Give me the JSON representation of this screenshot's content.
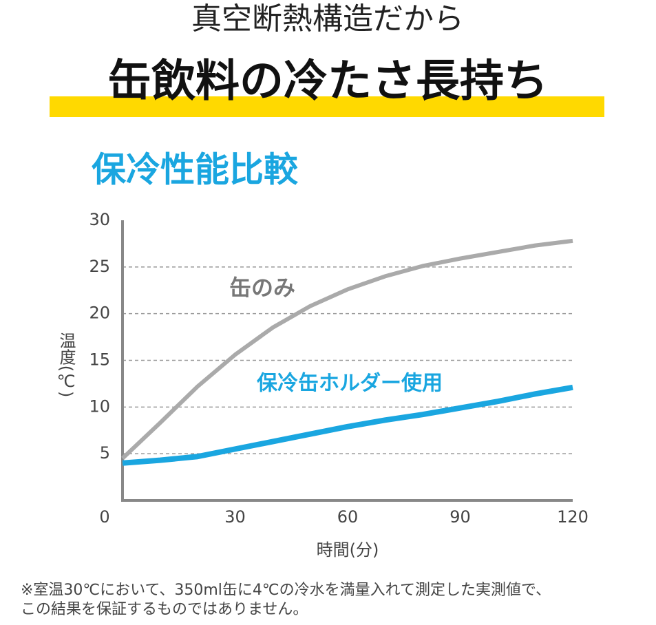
{
  "header": {
    "line1": "真空断熱構造だから",
    "line2": "缶飲料の冷たさ長持ち"
  },
  "chart_data": {
    "type": "line",
    "title": "保冷性能比較",
    "x_label": "時間(分)",
    "y_label": "温度(℃)",
    "x": [
      0,
      10,
      20,
      30,
      40,
      50,
      60,
      70,
      80,
      90,
      100,
      110,
      120
    ],
    "series": [
      {
        "name": "缶のみ",
        "color": "#aaaaaa",
        "values": [
          4.5,
          8.3,
          12.2,
          15.6,
          18.5,
          20.8,
          22.6,
          24.0,
          25.1,
          25.9,
          26.6,
          27.3,
          27.8
        ]
      },
      {
        "name": "保冷缶ホルダー使用",
        "color": "#1aa6e0",
        "values": [
          4.0,
          4.3,
          4.7,
          5.5,
          6.3,
          7.1,
          7.9,
          8.6,
          9.2,
          9.9,
          10.6,
          11.4,
          12.1
        ]
      }
    ],
    "xlim": [
      0,
      120
    ],
    "xticks": [
      0,
      30,
      60,
      90,
      120
    ],
    "ylim": [
      0,
      30
    ],
    "yticks": [
      5,
      10,
      15,
      20,
      25,
      30
    ],
    "grid": true
  },
  "footnote": {
    "line1": "※室温30℃において、350ml缶に4℃の冷水を満量入れて測定した実測値で、",
    "line2": "この結果を保証するものではありません。"
  }
}
